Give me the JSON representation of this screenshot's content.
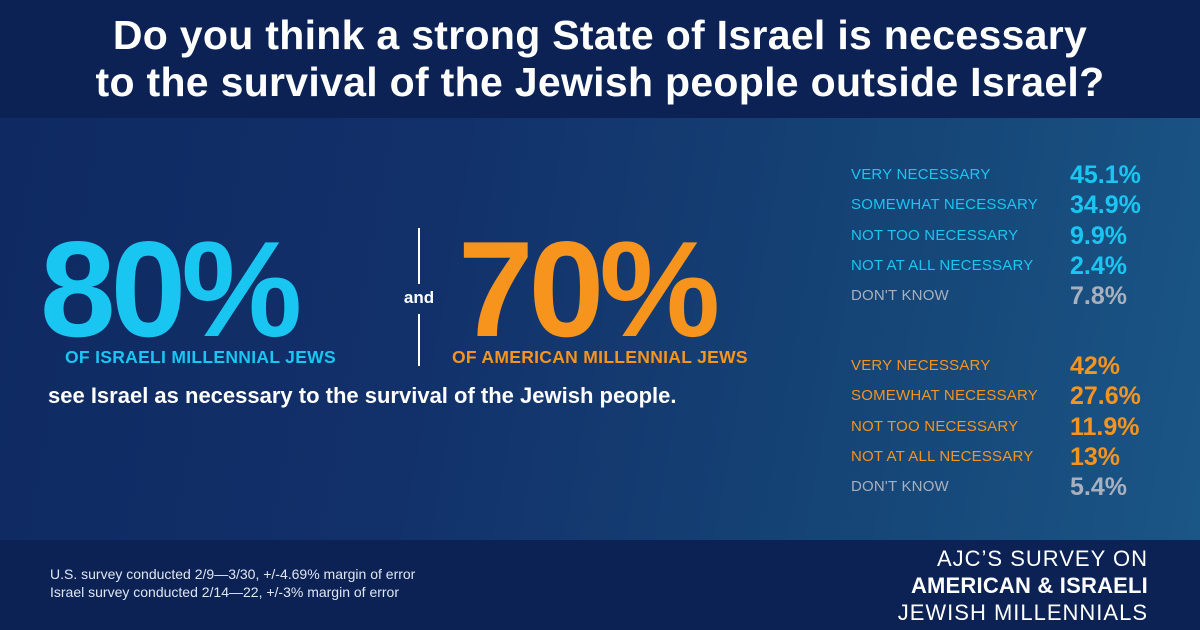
{
  "header": {
    "title_line1": "Do you think a strong State of Israel is necessary",
    "title_line2": "to the survival of the Jewish people outside Israel?"
  },
  "highlight": {
    "israel_pct": "80%",
    "israel_label": "OF ISRAELI MILLENNIAL JEWS",
    "connector": "and",
    "us_pct": "70%",
    "us_label": "OF AMERICAN MILLENNIAL JEWS",
    "caption": "see Israel as necessary to the survival of the Jewish people."
  },
  "chart_data": {
    "type": "table",
    "title": "Do you think a strong State of Israel is necessary to the survival of the Jewish people outside Israel?",
    "categories": [
      "VERY NECESSARY",
      "SOMEWHAT NECESSARY",
      "NOT TOO NECESSARY",
      "NOT AT ALL NECESSARY",
      "DON'T KNOW"
    ],
    "series": [
      {
        "name": "Israeli Millennial Jews",
        "color": "#19c6f2",
        "values": [
          45.1,
          34.9,
          9.9,
          2.4,
          7.8
        ],
        "labels": [
          "45.1%",
          "34.9%",
          "9.9%",
          "2.4%",
          "7.8%"
        ]
      },
      {
        "name": "American Millennial Jews",
        "color": "#f7941d",
        "values": [
          42,
          27.6,
          11.9,
          13,
          5.4
        ],
        "labels": [
          "42%",
          "27.6%",
          "11.9%",
          "13%",
          "5.4%"
        ]
      }
    ],
    "dont_know_color": "#a9b0bd"
  },
  "footer": {
    "note_us": "U.S. survey conducted 2/9—3/30, +/-4.69% margin of error",
    "note_israel": "Israel survey conducted 2/14—22, +/-3% margin of error",
    "brand_line1": "AJC’S SURVEY ON",
    "brand_line2": "AMERICAN & ISRAELI",
    "brand_line3": "JEWISH MILLENNIALS"
  }
}
